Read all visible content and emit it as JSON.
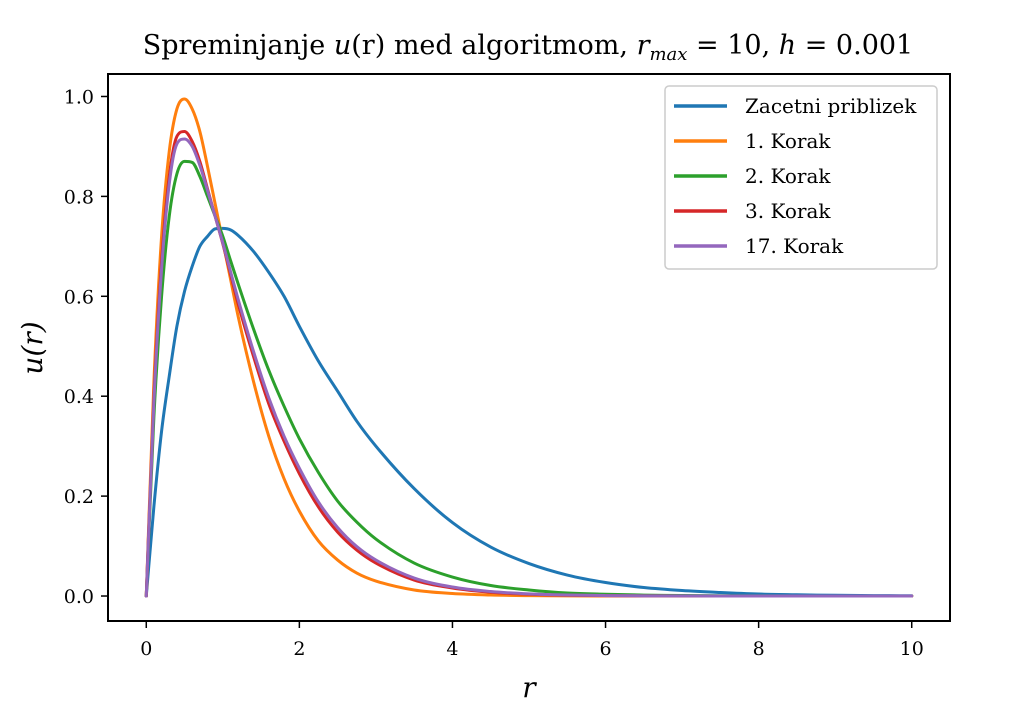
{
  "chart_data": {
    "type": "line",
    "title": "Spreminjanje u(r) med algoritmom, r_max = 10, h = 0.001",
    "title_parts": {
      "prefix": "Spreminjanje ",
      "u": "u",
      "u_arg": "(r)",
      "mid": " med algoritmom, ",
      "r": "r",
      "max_sub": "max",
      "rmax_eq": " = 10, ",
      "h": "h",
      "h_eq": " = 0.001"
    },
    "xlabel": "r",
    "ylabel": "u(r)",
    "xlim": [
      -0.5,
      10.5
    ],
    "ylim": [
      -0.05,
      1.045
    ],
    "xticks": [
      0,
      2,
      4,
      6,
      8,
      10
    ],
    "xtick_labels": [
      "0",
      "2",
      "4",
      "6",
      "8",
      "10"
    ],
    "yticks": [
      0.0,
      0.2,
      0.4,
      0.6,
      0.8,
      1.0
    ],
    "ytick_labels": [
      "0.0",
      "0.2",
      "0.4",
      "0.6",
      "0.8",
      "1.0"
    ],
    "grid": false,
    "legend_position": "top-right",
    "x": [
      0,
      0.1,
      0.2,
      0.3,
      0.4,
      0.5,
      0.6,
      0.7,
      0.8,
      0.9,
      1.0,
      1.1,
      1.2,
      1.4,
      1.6,
      1.8,
      2.0,
      2.25,
      2.5,
      2.75,
      3.0,
      3.5,
      4.0,
      4.5,
      5.0,
      5.5,
      6.0,
      6.5,
      7.0,
      7.5,
      8.0,
      8.5,
      9.0,
      9.5,
      10.0
    ],
    "series": [
      {
        "name": "Zacetni priblizek",
        "color": "#1f77b4",
        "values": [
          0.0,
          0.18,
          0.33,
          0.44,
          0.54,
          0.61,
          0.66,
          0.7,
          0.72,
          0.735,
          0.736,
          0.733,
          0.722,
          0.69,
          0.648,
          0.6,
          0.54,
          0.47,
          0.41,
          0.35,
          0.3,
          0.215,
          0.147,
          0.098,
          0.065,
          0.042,
          0.027,
          0.017,
          0.011,
          0.007,
          0.004,
          0.0025,
          0.0015,
          0.0009,
          0.0005
        ]
      },
      {
        "name": "1. Korak",
        "color": "#ff7f0e",
        "values": [
          0.0,
          0.43,
          0.72,
          0.89,
          0.975,
          0.995,
          0.975,
          0.93,
          0.86,
          0.785,
          0.71,
          0.635,
          0.56,
          0.43,
          0.32,
          0.235,
          0.17,
          0.11,
          0.072,
          0.046,
          0.03,
          0.012,
          0.005,
          0.002,
          0.0008,
          0.0003,
          0.0001,
          0.0,
          0.0,
          0.0,
          0.0,
          0.0,
          0.0,
          0.0,
          0.0
        ]
      },
      {
        "name": "2. Korak",
        "color": "#2ca02c",
        "values": [
          0.0,
          0.36,
          0.6,
          0.76,
          0.845,
          0.87,
          0.868,
          0.84,
          0.8,
          0.76,
          0.72,
          0.672,
          0.625,
          0.535,
          0.452,
          0.38,
          0.315,
          0.247,
          0.19,
          0.148,
          0.114,
          0.066,
          0.038,
          0.021,
          0.012,
          0.006,
          0.0035,
          0.0019,
          0.001,
          0.0005,
          0.0003,
          0.0001,
          0.0,
          0.0,
          0.0
        ]
      },
      {
        "name": "3. Korak",
        "color": "#d62728",
        "values": [
          0.0,
          0.4,
          0.67,
          0.84,
          0.92,
          0.93,
          0.91,
          0.87,
          0.815,
          0.76,
          0.705,
          0.645,
          0.585,
          0.48,
          0.385,
          0.31,
          0.245,
          0.178,
          0.128,
          0.092,
          0.066,
          0.032,
          0.016,
          0.0075,
          0.0035,
          0.0016,
          0.0007,
          0.0003,
          0.0001,
          0.0,
          0.0,
          0.0,
          0.0,
          0.0,
          0.0
        ]
      },
      {
        "name": "17. Korak",
        "color": "#9467bd",
        "values": [
          0.0,
          0.39,
          0.655,
          0.825,
          0.905,
          0.915,
          0.9,
          0.862,
          0.812,
          0.76,
          0.707,
          0.65,
          0.594,
          0.49,
          0.397,
          0.32,
          0.256,
          0.188,
          0.137,
          0.099,
          0.072,
          0.036,
          0.018,
          0.009,
          0.0043,
          0.002,
          0.0009,
          0.0004,
          0.0002,
          0.0001,
          0.0,
          0.0,
          0.0,
          0.0,
          0.0
        ]
      }
    ]
  }
}
